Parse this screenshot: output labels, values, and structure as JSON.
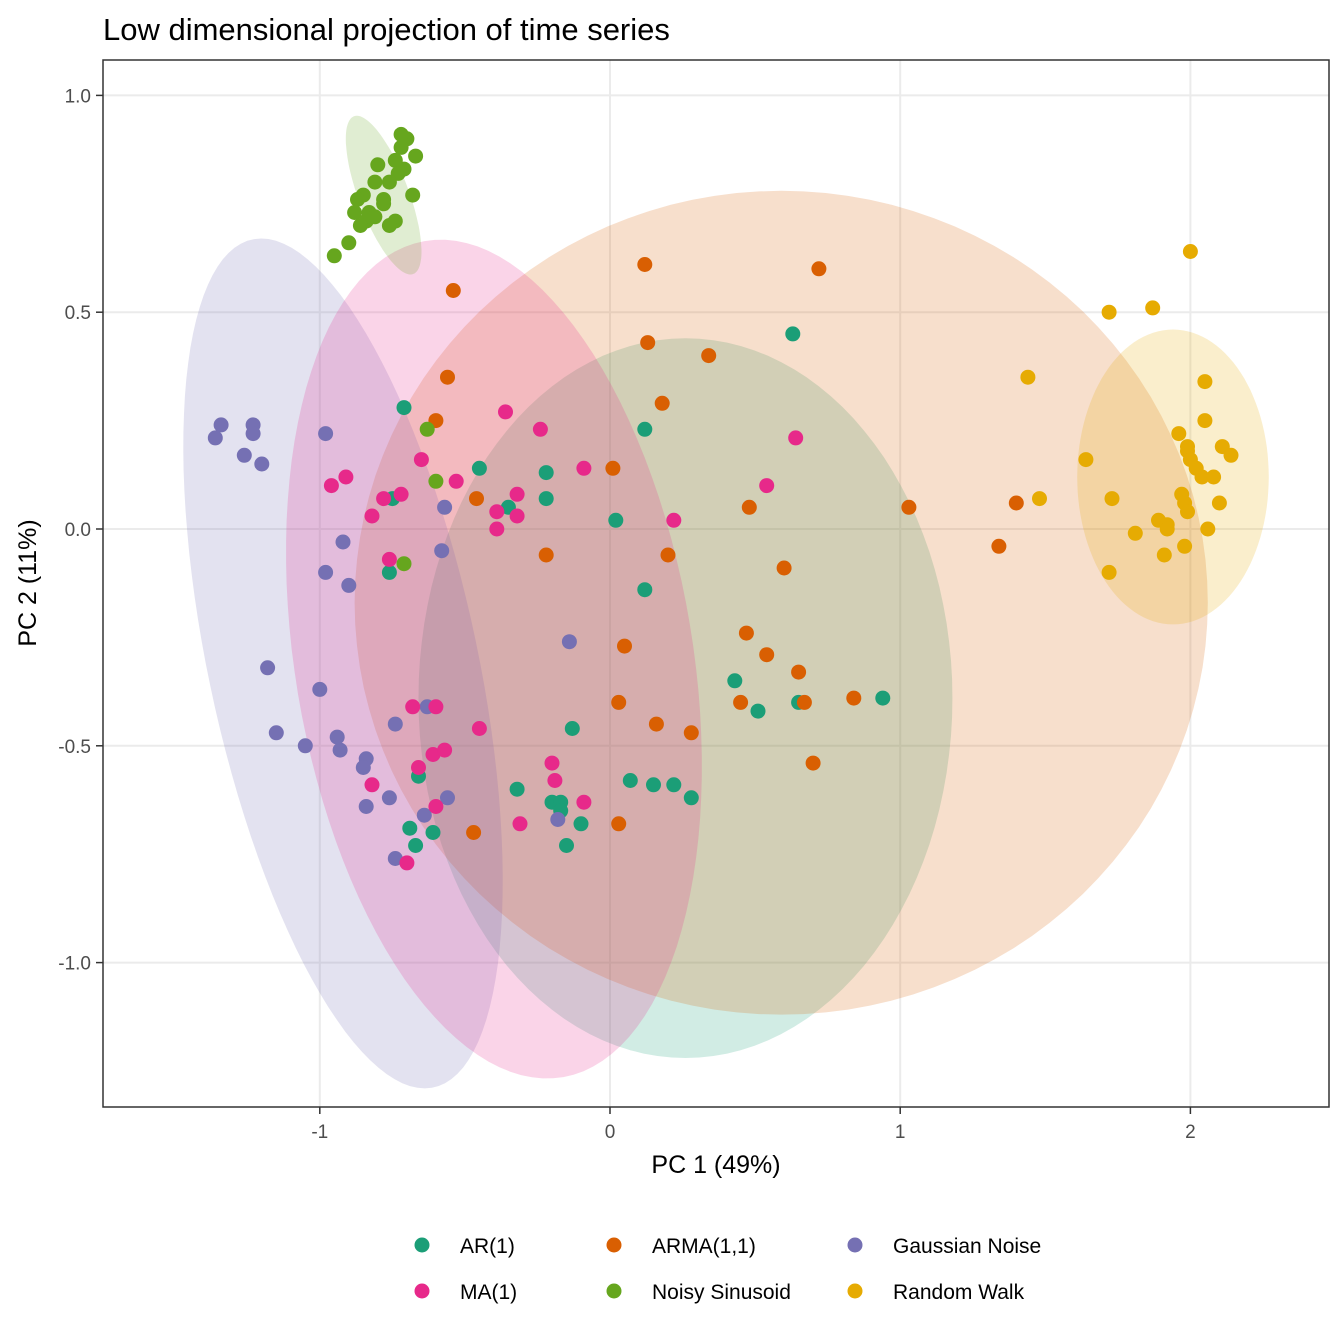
{
  "chart_data": {
    "type": "scatter",
    "title": "Low dimensional projection of time series",
    "xlabel": "PC 1 (49%)",
    "ylabel": "PC 2 (11%)",
    "xlim": [
      -1.75,
      2.45
    ],
    "ylim": [
      -1.34,
      1.08
    ],
    "x_ticks": [
      -1,
      0,
      1,
      2
    ],
    "x_tick_labels": [
      "-1",
      "0",
      "1",
      "2"
    ],
    "y_ticks": [
      -1.0,
      -0.5,
      0.0,
      0.5,
      1.0
    ],
    "y_tick_labels": [
      "-1.0",
      "-0.5",
      "0.0",
      "0.5",
      "1.0"
    ],
    "grid": true,
    "legend_position": "bottom",
    "series": [
      {
        "name": "AR(1)",
        "color": "#1b9e77",
        "ellipse": {
          "cx": 0.26,
          "cy": -0.39,
          "rx": 0.92,
          "ry": 0.83,
          "angle": 0
        },
        "points": [
          [
            0.63,
            0.45
          ],
          [
            -0.71,
            0.28
          ],
          [
            0.12,
            0.23
          ],
          [
            -0.45,
            0.14
          ],
          [
            -0.22,
            0.13
          ],
          [
            -0.22,
            0.07
          ],
          [
            -0.35,
            0.05
          ],
          [
            -0.75,
            0.07
          ],
          [
            0.02,
            0.02
          ],
          [
            -0.76,
            -0.1
          ],
          [
            0.12,
            -0.14
          ],
          [
            0.43,
            -0.35
          ],
          [
            0.51,
            -0.42
          ],
          [
            0.65,
            -0.4
          ],
          [
            0.94,
            -0.39
          ],
          [
            -0.13,
            -0.46
          ],
          [
            -0.66,
            -0.57
          ],
          [
            0.07,
            -0.58
          ],
          [
            0.15,
            -0.59
          ],
          [
            0.22,
            -0.59
          ],
          [
            0.28,
            -0.62
          ],
          [
            -0.32,
            -0.6
          ],
          [
            -0.2,
            -0.63
          ],
          [
            -0.17,
            -0.63
          ],
          [
            -0.17,
            -0.65
          ],
          [
            -0.1,
            -0.68
          ],
          [
            -0.69,
            -0.69
          ],
          [
            -0.61,
            -0.7
          ],
          [
            -0.67,
            -0.73
          ],
          [
            -0.15,
            -0.73
          ]
        ]
      },
      {
        "name": "ARMA(1,1)",
        "color": "#d95f02",
        "ellipse": {
          "cx": 0.59,
          "cy": -0.17,
          "rx": 1.47,
          "ry": 0.95,
          "angle": 0
        },
        "points": [
          [
            0.12,
            0.61
          ],
          [
            0.72,
            0.6
          ],
          [
            -0.54,
            0.55
          ],
          [
            0.13,
            0.43
          ],
          [
            0.34,
            0.4
          ],
          [
            -0.56,
            0.35
          ],
          [
            0.18,
            0.29
          ],
          [
            -0.6,
            0.25
          ],
          [
            0.01,
            0.14
          ],
          [
            -0.46,
            0.07
          ],
          [
            0.48,
            0.05
          ],
          [
            1.03,
            0.05
          ],
          [
            1.4,
            0.06
          ],
          [
            1.34,
            -0.04
          ],
          [
            -0.22,
            -0.06
          ],
          [
            0.2,
            -0.06
          ],
          [
            0.6,
            -0.09
          ],
          [
            0.47,
            -0.24
          ],
          [
            0.05,
            -0.27
          ],
          [
            0.54,
            -0.29
          ],
          [
            0.65,
            -0.33
          ],
          [
            0.03,
            -0.4
          ],
          [
            0.45,
            -0.4
          ],
          [
            0.67,
            -0.4
          ],
          [
            0.84,
            -0.39
          ],
          [
            0.16,
            -0.45
          ],
          [
            0.28,
            -0.47
          ],
          [
            0.7,
            -0.54
          ],
          [
            -0.47,
            -0.7
          ],
          [
            0.03,
            -0.68
          ]
        ]
      },
      {
        "name": "Gaussian Noise",
        "color": "#7570b3",
        "ellipse": {
          "cx": -0.92,
          "cy": -0.31,
          "rx": 1.03,
          "ry": 0.45,
          "angle": -70
        },
        "points": [
          [
            -1.34,
            0.24
          ],
          [
            -1.23,
            0.24
          ],
          [
            -1.36,
            0.21
          ],
          [
            -1.23,
            0.22
          ],
          [
            -1.26,
            0.17
          ],
          [
            -1.2,
            0.15
          ],
          [
            -0.98,
            0.22
          ],
          [
            -0.57,
            0.05
          ],
          [
            -0.92,
            -0.03
          ],
          [
            -0.98,
            -0.1
          ],
          [
            -0.58,
            -0.05
          ],
          [
            -0.9,
            -0.13
          ],
          [
            -1.18,
            -0.32
          ],
          [
            -0.14,
            -0.26
          ],
          [
            -1.0,
            -0.37
          ],
          [
            -1.15,
            -0.47
          ],
          [
            -1.05,
            -0.5
          ],
          [
            -0.94,
            -0.48
          ],
          [
            -0.93,
            -0.51
          ],
          [
            -0.74,
            -0.45
          ],
          [
            -0.63,
            -0.41
          ],
          [
            -0.84,
            -0.53
          ],
          [
            -0.85,
            -0.55
          ],
          [
            -0.76,
            -0.62
          ],
          [
            -0.56,
            -0.62
          ],
          [
            -0.84,
            -0.64
          ],
          [
            -0.64,
            -0.66
          ],
          [
            -0.18,
            -0.67
          ],
          [
            -0.74,
            -0.76
          ]
        ]
      },
      {
        "name": "MA(1)",
        "color": "#e7298a",
        "ellipse": {
          "cx": -0.4,
          "cy": -0.3,
          "rx": 0.67,
          "ry": 1.0,
          "angle": 20
        },
        "points": [
          [
            -0.36,
            0.27
          ],
          [
            -0.24,
            0.23
          ],
          [
            0.64,
            0.21
          ],
          [
            -0.65,
            0.16
          ],
          [
            -0.91,
            0.12
          ],
          [
            -0.96,
            0.1
          ],
          [
            -0.53,
            0.11
          ],
          [
            -0.09,
            0.14
          ],
          [
            0.54,
            0.1
          ],
          [
            -0.78,
            0.07
          ],
          [
            -0.72,
            0.08
          ],
          [
            -0.82,
            0.03
          ],
          [
            -0.32,
            0.08
          ],
          [
            -0.39,
            0.04
          ],
          [
            -0.39,
            0.0
          ],
          [
            -0.32,
            0.03
          ],
          [
            0.22,
            0.02
          ],
          [
            -0.76,
            -0.07
          ],
          [
            -0.68,
            -0.41
          ],
          [
            -0.6,
            -0.41
          ],
          [
            -0.45,
            -0.46
          ],
          [
            -0.61,
            -0.52
          ],
          [
            -0.57,
            -0.51
          ],
          [
            -0.66,
            -0.55
          ],
          [
            -0.2,
            -0.54
          ],
          [
            -0.19,
            -0.58
          ],
          [
            -0.82,
            -0.59
          ],
          [
            -0.6,
            -0.64
          ],
          [
            -0.09,
            -0.63
          ],
          [
            -0.31,
            -0.68
          ],
          [
            -0.7,
            -0.77
          ]
        ]
      },
      {
        "name": "Noisy Sinusoid",
        "color": "#66a61e",
        "ellipse": {
          "cx": -0.78,
          "cy": 0.77,
          "rx": 0.21,
          "ry": 0.08,
          "angle": -58
        },
        "points": [
          [
            -0.7,
            0.9
          ],
          [
            -0.72,
            0.88
          ],
          [
            -0.72,
            0.91
          ],
          [
            -0.8,
            0.84
          ],
          [
            -0.74,
            0.85
          ],
          [
            -0.67,
            0.86
          ],
          [
            -0.73,
            0.82
          ],
          [
            -0.81,
            0.8
          ],
          [
            -0.71,
            0.83
          ],
          [
            -0.68,
            0.77
          ],
          [
            -0.85,
            0.77
          ],
          [
            -0.76,
            0.8
          ],
          [
            -0.83,
            0.73
          ],
          [
            -0.87,
            0.76
          ],
          [
            -0.78,
            0.76
          ],
          [
            -0.88,
            0.73
          ],
          [
            -0.81,
            0.72
          ],
          [
            -0.78,
            0.75
          ],
          [
            -0.84,
            0.71
          ],
          [
            -0.86,
            0.7
          ],
          [
            -0.74,
            0.71
          ],
          [
            -0.76,
            0.7
          ],
          [
            -0.9,
            0.66
          ],
          [
            -0.95,
            0.63
          ],
          [
            -0.63,
            0.23
          ],
          [
            -0.6,
            0.11
          ],
          [
            -0.71,
            -0.08
          ]
        ]
      },
      {
        "name": "Random Walk",
        "color": "#e6ab02",
        "ellipse": {
          "cx": 1.94,
          "cy": 0.12,
          "rx": 0.33,
          "ry": 0.34,
          "angle": 0
        },
        "points": [
          [
            2.0,
            0.64
          ],
          [
            1.72,
            0.5
          ],
          [
            1.87,
            0.51
          ],
          [
            1.44,
            0.35
          ],
          [
            2.05,
            0.34
          ],
          [
            2.05,
            0.25
          ],
          [
            1.96,
            0.22
          ],
          [
            1.99,
            0.19
          ],
          [
            1.99,
            0.18
          ],
          [
            2.0,
            0.16
          ],
          [
            2.02,
            0.14
          ],
          [
            2.04,
            0.12
          ],
          [
            2.08,
            0.12
          ],
          [
            2.11,
            0.19
          ],
          [
            2.14,
            0.17
          ],
          [
            1.64,
            0.16
          ],
          [
            1.73,
            0.07
          ],
          [
            1.48,
            0.07
          ],
          [
            1.97,
            0.08
          ],
          [
            1.98,
            0.06
          ],
          [
            1.99,
            0.04
          ],
          [
            2.1,
            0.06
          ],
          [
            1.89,
            0.02
          ],
          [
            1.92,
            0.01
          ],
          [
            1.92,
            0.0
          ],
          [
            2.06,
            0.0
          ],
          [
            1.81,
            -0.01
          ],
          [
            1.98,
            -0.04
          ],
          [
            1.91,
            -0.06
          ],
          [
            1.72,
            -0.1
          ]
        ]
      }
    ]
  }
}
